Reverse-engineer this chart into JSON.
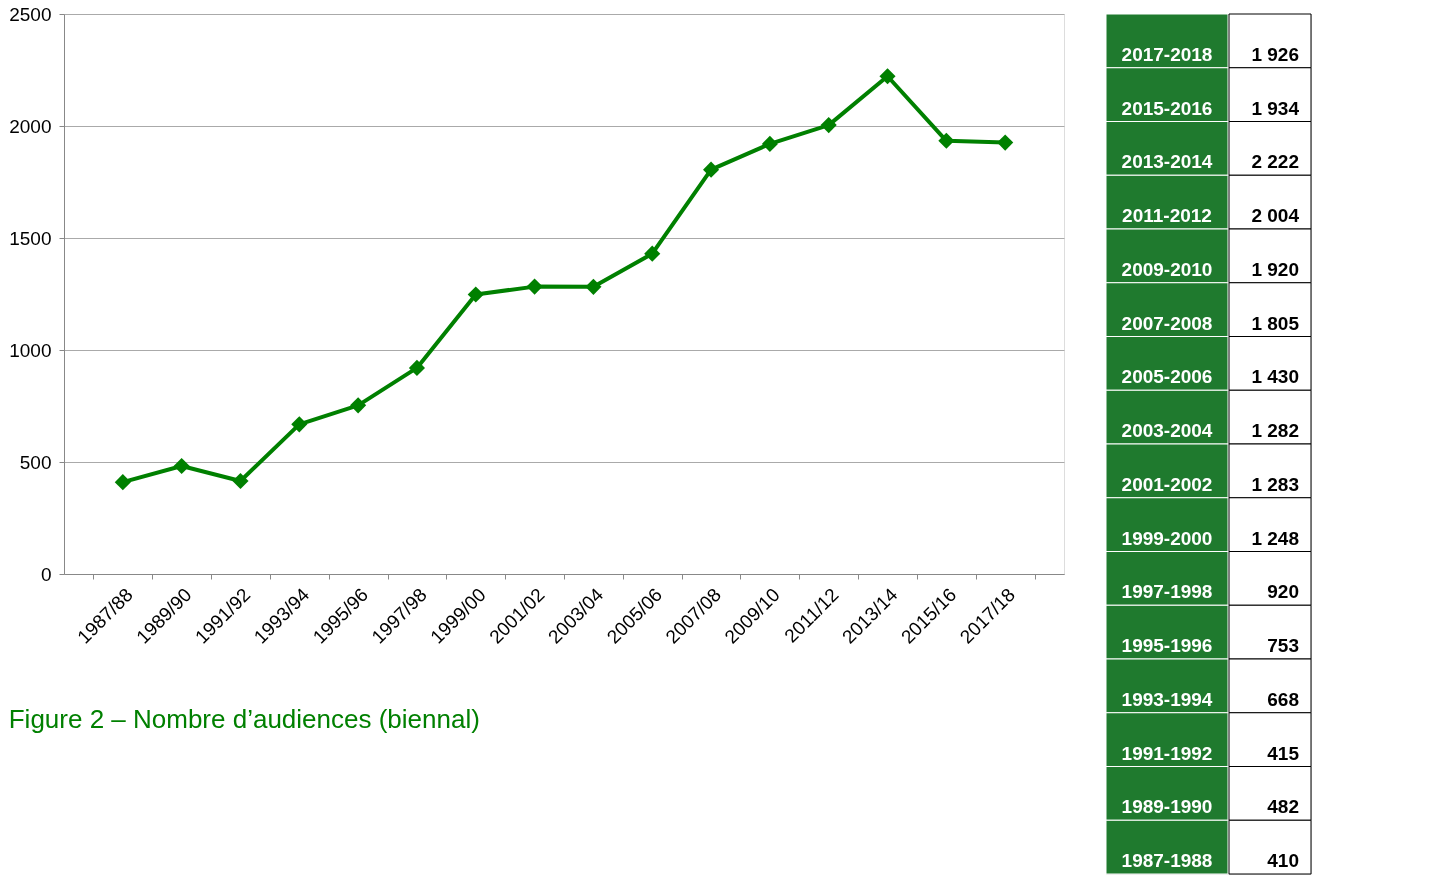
{
  "chart_data": {
    "type": "line",
    "title": "Figure 2 – Nombre d’audiences (biennal)",
    "categories": [
      "1987/88",
      "1989/90",
      "1991/92",
      "1993/94",
      "1995/96",
      "1997/98",
      "1999/00",
      "2001/02",
      "2003/04",
      "2005/06",
      "2007/08",
      "2009/10",
      "2011/12",
      "2013/14",
      "2015/16",
      "2017/18"
    ],
    "series": [
      {
        "color": "#008000",
        "values": [
          410,
          482,
          415,
          668,
          753,
          920,
          1248,
          1283,
          1282,
          1430,
          1805,
          1920,
          2004,
          2222,
          1934,
          1926
        ]
      }
    ],
    "value_labels": [
      "410",
      "482",
      "415",
      "668",
      "753",
      "920",
      "1 248",
      "1 283",
      "1 282",
      "1 430",
      "1 805",
      "1 920",
      "2 004",
      "2 222",
      "1 934",
      "1 926"
    ],
    "annotations": [
      "2017-2018",
      "2015-2016",
      "2013-2014",
      "2011-2012",
      "2009-2010",
      "2007-2008",
      "2005-2006",
      "2003-2004",
      "2001-2002",
      "1999-2000",
      "1997-1998",
      "1995-1996",
      "1993-1994",
      "1991-1992",
      "1989-1990",
      "1987-1988"
    ],
    "ylim": [
      0,
      2500
    ],
    "yticks": [
      0,
      500,
      1000,
      1500,
      2000,
      2500
    ],
    "grid": "y",
    "marker": "diamond",
    "line_style": "solid"
  }
}
